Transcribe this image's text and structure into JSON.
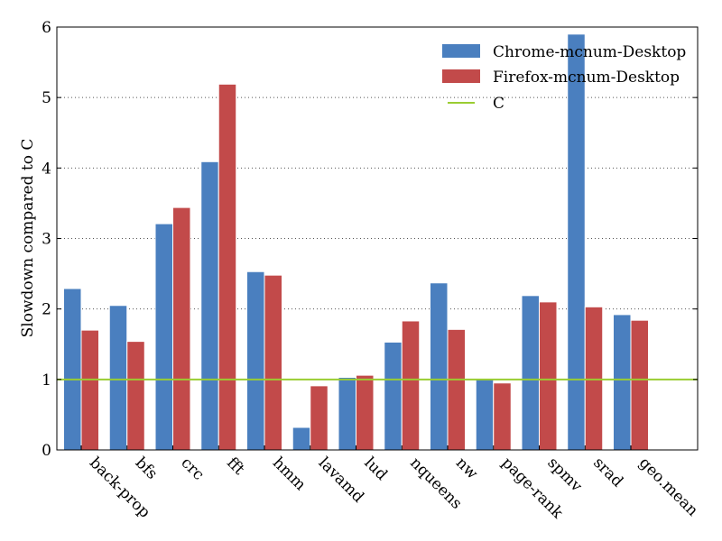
{
  "chart_data": {
    "type": "bar",
    "title": "",
    "xlabel": "",
    "ylabel": "Slowdown compared to C",
    "ylim": [
      0,
      6
    ],
    "yticks": [
      "0",
      "1",
      "2",
      "3",
      "4",
      "5",
      "6"
    ],
    "grid": "horizontal dotted",
    "legend_position": "top-right",
    "categories": [
      "back-prop",
      "bfs",
      "crc",
      "fft",
      "hmm",
      "lavamd",
      "lud",
      "nqueens",
      "nw",
      "page-rank",
      "spmv",
      "srad",
      "geo.mean"
    ],
    "series": [
      {
        "name": "Chrome-mcnum-Desktop",
        "color": "#4a7fbf",
        "values": [
          2.29,
          2.05,
          3.21,
          4.09,
          2.53,
          0.32,
          1.03,
          1.53,
          2.37,
          1.01,
          2.19,
          5.9,
          1.92
        ]
      },
      {
        "name": "Firefox-mcnum-Desktop",
        "color": "#c24a4a",
        "values": [
          1.7,
          1.54,
          3.44,
          5.19,
          2.48,
          0.91,
          1.06,
          1.83,
          1.71,
          0.95,
          2.1,
          2.03,
          1.84
        ]
      }
    ],
    "reference_line": {
      "name": "C",
      "value": 1,
      "color": "#9acd32"
    }
  }
}
